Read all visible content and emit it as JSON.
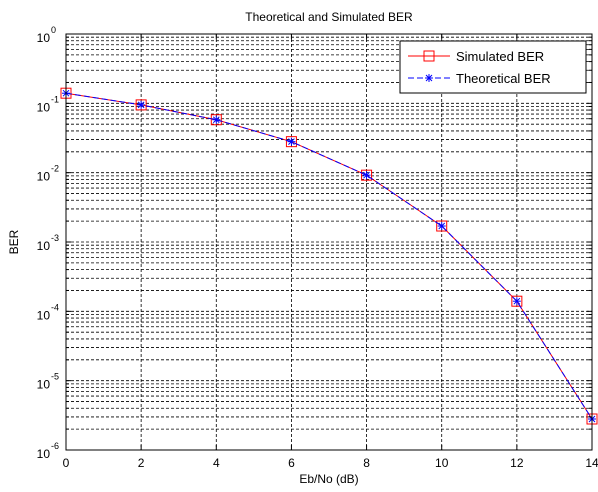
{
  "chart_data": {
    "type": "line",
    "title": "Theoretical and Simulated BER",
    "xlabel": "Eb/No (dB)",
    "ylabel": "BER",
    "x": [
      0,
      2,
      4,
      6,
      8,
      10,
      12,
      14
    ],
    "xlim": [
      0,
      14
    ],
    "ylim": [
      1e-06,
      1
    ],
    "yscale": "log",
    "grid": true,
    "legend_position": "top-right",
    "x_ticks": [
      "0",
      "2",
      "4",
      "6",
      "8",
      "10",
      "12",
      "14"
    ],
    "y_ticks": [
      {
        "base": "10",
        "exp": "-6",
        "value": 1e-06
      },
      {
        "base": "10",
        "exp": "-5",
        "value": 1e-05
      },
      {
        "base": "10",
        "exp": "-4",
        "value": 0.0001
      },
      {
        "base": "10",
        "exp": "-3",
        "value": 0.001
      },
      {
        "base": "10",
        "exp": "-2",
        "value": 0.01
      },
      {
        "base": "10",
        "exp": "-1",
        "value": 0.1
      },
      {
        "base": "10",
        "exp": "0",
        "value": 1
      }
    ],
    "series": [
      {
        "name": "Simulated BER",
        "color": "#ff0000",
        "marker": "square",
        "line": "solid",
        "values": [
          0.14,
          0.095,
          0.058,
          0.028,
          0.0092,
          0.0017,
          0.00014,
          2.8e-06
        ]
      },
      {
        "name": "Theoretical BER",
        "color": "#0000ff",
        "marker": "star",
        "line": "dashed",
        "values": [
          0.14,
          0.095,
          0.058,
          0.028,
          0.0092,
          0.0017,
          0.00014,
          2.8e-06
        ]
      }
    ]
  }
}
